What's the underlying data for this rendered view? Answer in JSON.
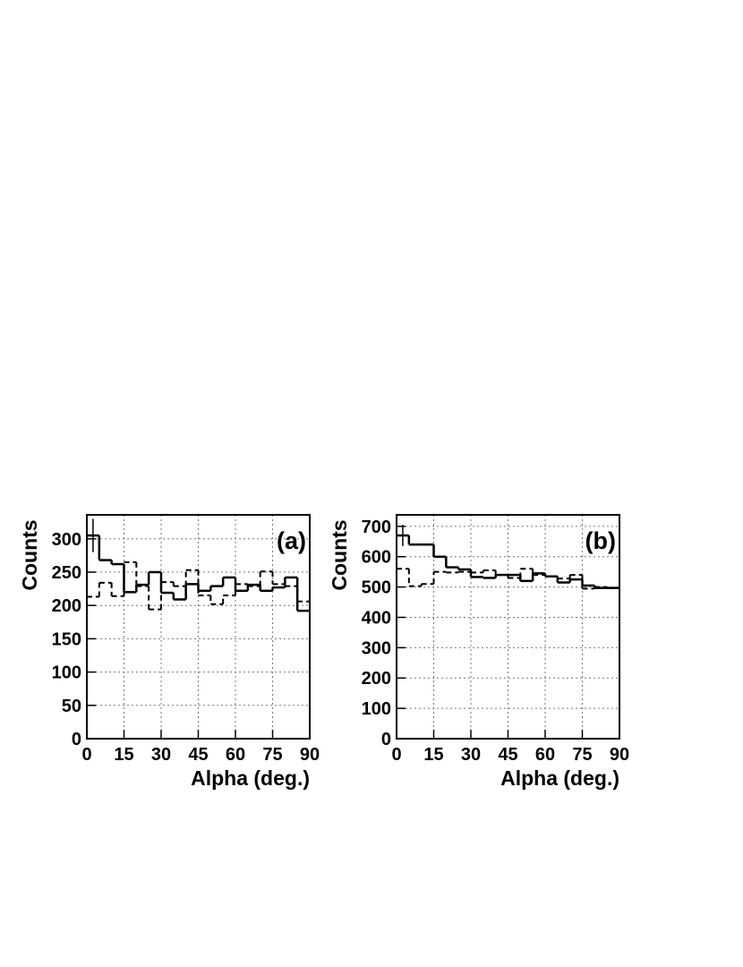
{
  "chart_data": [
    {
      "type": "histogram",
      "label": "(a)",
      "x_label": "Alpha (deg.)",
      "y_label": "Counts",
      "bins": [
        0,
        5,
        10,
        15,
        20,
        25,
        30,
        35,
        40,
        45,
        50,
        55,
        60,
        65,
        70,
        75,
        80,
        85,
        90
      ],
      "series": [
        {
          "color": "#000000",
          "style": "solid",
          "values": [
            305,
            268,
            262,
            220,
            231,
            250,
            219,
            209,
            232,
            222,
            229,
            242,
            222,
            231,
            222,
            227,
            242,
            192
          ],
          "errors": [
            25,
            null,
            null,
            null,
            null,
            null,
            null,
            null,
            null,
            null,
            null,
            null,
            null,
            null,
            null,
            null,
            null,
            null
          ]
        },
        {
          "color": "#000000",
          "style": "dashed",
          "values": [
            213,
            234,
            214,
            265,
            229,
            194,
            235,
            229,
            253,
            215,
            202,
            215,
            232,
            229,
            251,
            232,
            229,
            206
          ]
        }
      ],
      "xlim": [
        0,
        90
      ],
      "xticks": [
        0,
        15,
        30,
        45,
        60,
        75,
        90
      ],
      "ylim": [
        0,
        336
      ],
      "yticks": [
        0,
        50,
        100,
        150,
        200,
        250,
        300
      ],
      "grid": true
    },
    {
      "type": "histogram",
      "label": "(b)",
      "x_label": "Alpha (deg.)",
      "y_label": "Counts",
      "bins": [
        0,
        5,
        10,
        15,
        20,
        25,
        30,
        35,
        40,
        45,
        50,
        55,
        60,
        65,
        70,
        75,
        80,
        85,
        90
      ],
      "series": [
        {
          "color": "#000000",
          "style": "solid",
          "values": [
            670,
            640,
            640,
            600,
            565,
            558,
            533,
            530,
            540,
            540,
            520,
            545,
            535,
            515,
            525,
            505,
            497,
            497
          ],
          "errors": [
            35,
            null,
            null,
            null,
            null,
            null,
            null,
            null,
            null,
            null,
            null,
            null,
            null,
            null,
            null,
            null,
            null,
            null
          ]
        },
        {
          "color": "#000000",
          "style": "dashed",
          "values": [
            560,
            503,
            510,
            550,
            548,
            550,
            548,
            555,
            540,
            530,
            560,
            540,
            535,
            528,
            540,
            495,
            500,
            497
          ]
        }
      ],
      "xlim": [
        0,
        90
      ],
      "xticks": [
        0,
        15,
        30,
        45,
        60,
        75,
        90
      ],
      "ylim": [
        0,
        738
      ],
      "yticks": [
        0,
        100,
        200,
        300,
        400,
        500,
        600,
        700
      ],
      "grid": true
    }
  ]
}
